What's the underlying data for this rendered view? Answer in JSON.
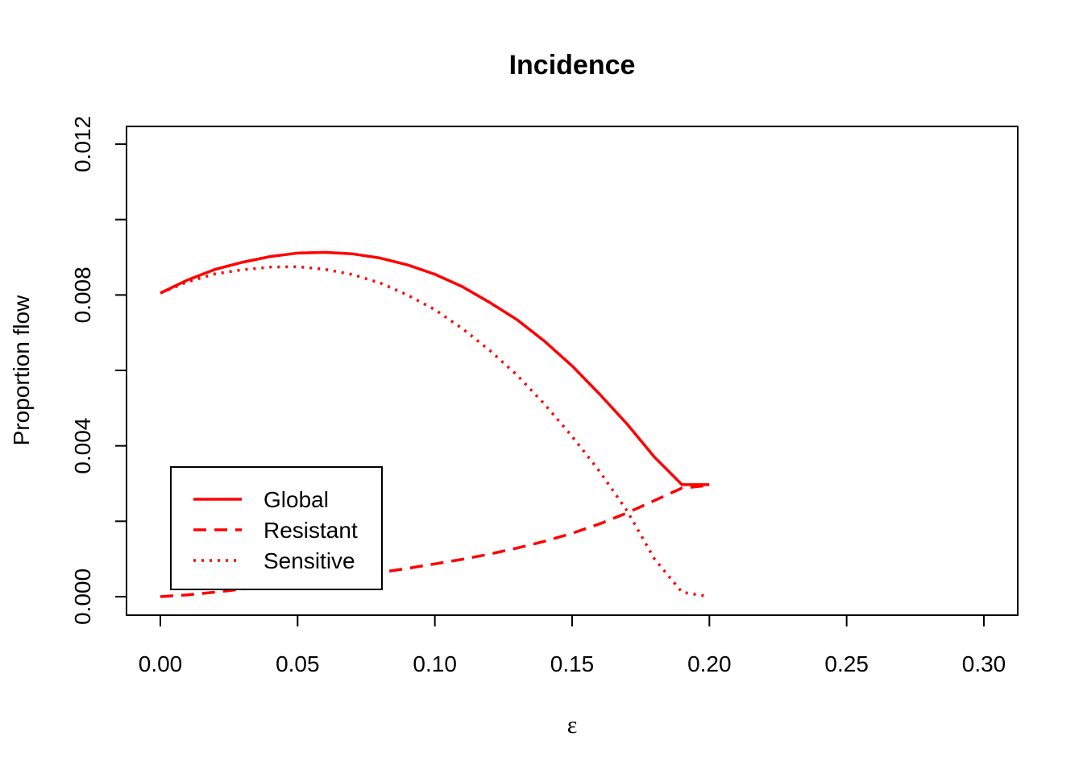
{
  "chart_data": {
    "type": "line",
    "title": "Incidence",
    "xlabel": "ε",
    "ylabel": "Proportion flow",
    "xlim": [
      0.0,
      0.3
    ],
    "ylim": [
      0.0,
      0.012
    ],
    "x_ticks": [
      "0.00",
      "0.05",
      "0.10",
      "0.15",
      "0.20",
      "0.25",
      "0.30"
    ],
    "x_tick_values": [
      0.0,
      0.05,
      0.1,
      0.15,
      0.2,
      0.25,
      0.3
    ],
    "y_ticks": [
      "0.000",
      "",
      "0.004",
      "",
      "0.008",
      "",
      "0.012"
    ],
    "y_tick_values": [
      0.0,
      0.002,
      0.004,
      0.006,
      0.008,
      0.01,
      0.012
    ],
    "grid": false,
    "legend_position": "bottom-left",
    "color": "#ff0000",
    "series": [
      {
        "name": "Global",
        "dash": "solid",
        "x": [
          0.0,
          0.01,
          0.02,
          0.03,
          0.04,
          0.05,
          0.06,
          0.07,
          0.08,
          0.09,
          0.1,
          0.11,
          0.12,
          0.13,
          0.14,
          0.15,
          0.16,
          0.17,
          0.18,
          0.19,
          0.2
        ],
        "y": [
          0.00805,
          0.0084,
          0.00868,
          0.00887,
          0.00902,
          0.00911,
          0.00913,
          0.00909,
          0.00898,
          0.0088,
          0.00855,
          0.00822,
          0.0078,
          0.00734,
          0.00677,
          0.00612,
          0.00537,
          0.00458,
          0.0037,
          0.00297,
          0.00297
        ]
      },
      {
        "name": "Resistant",
        "dash": "dashed",
        "x": [
          0.0,
          0.01,
          0.02,
          0.03,
          0.04,
          0.05,
          0.06,
          0.07,
          0.08,
          0.09,
          0.1,
          0.11,
          0.12,
          0.13,
          0.14,
          0.15,
          0.16,
          0.17,
          0.18,
          0.19,
          0.2
        ],
        "y": [
          0.0,
          5e-05,
          0.00012,
          0.0002,
          0.00028,
          0.00036,
          0.00045,
          0.00054,
          0.00064,
          0.00075,
          0.00087,
          0.00099,
          0.00113,
          0.00129,
          0.00147,
          0.00168,
          0.00193,
          0.00222,
          0.00255,
          0.00288,
          0.00295
        ]
      },
      {
        "name": "Sensitive",
        "dash": "dotted",
        "x": [
          0.0,
          0.01,
          0.02,
          0.03,
          0.04,
          0.05,
          0.06,
          0.07,
          0.08,
          0.09,
          0.1,
          0.11,
          0.12,
          0.13,
          0.14,
          0.15,
          0.16,
          0.17,
          0.18,
          0.19,
          0.2
        ],
        "y": [
          0.00805,
          0.00835,
          0.00856,
          0.00867,
          0.00874,
          0.00875,
          0.00868,
          0.00854,
          0.00832,
          0.008,
          0.00761,
          0.00711,
          0.00653,
          0.00587,
          0.0051,
          0.00425,
          0.00332,
          0.00228,
          0.001,
          0.00012,
          0.0
        ]
      }
    ]
  }
}
